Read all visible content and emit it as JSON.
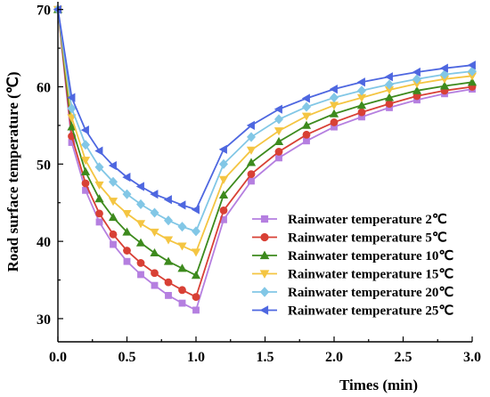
{
  "chart_data": {
    "type": "line",
    "xlabel": "Times (min)",
    "ylabel": "Road surface temperature (℃)",
    "xlim": [
      0,
      3.0
    ],
    "ylim": [
      27,
      71
    ],
    "x_ticks": [
      "0.0",
      "0.5",
      "1.0",
      "1.5",
      "2.0",
      "2.5",
      "3.0"
    ],
    "x_tick_values": [
      0,
      0.5,
      1.0,
      1.5,
      2.0,
      2.5,
      3.0
    ],
    "y_ticks": [
      "30",
      "40",
      "50",
      "60",
      "70"
    ],
    "y_tick_values": [
      30,
      40,
      50,
      60,
      70
    ],
    "grid": false,
    "legend_position": "bottom-right",
    "x": [
      0,
      0.1,
      0.2,
      0.3,
      0.4,
      0.5,
      0.6,
      0.7,
      0.8,
      0.9,
      1.0,
      1.2,
      1.4,
      1.6,
      1.8,
      2.0,
      2.2,
      2.4,
      2.6,
      2.8,
      3.0
    ],
    "series": [
      {
        "name": "Rainwater temperature 2℃",
        "color": "#b57fe0",
        "marker": "square",
        "values": [
          70,
          52.8,
          46.6,
          42.5,
          39.6,
          37.4,
          35.7,
          34.3,
          33.0,
          32.0,
          31.1,
          42.8,
          47.8,
          50.8,
          53.0,
          54.8,
          56.1,
          57.3,
          58.3,
          59.1,
          59.7
        ]
      },
      {
        "name": "Rainwater temperature 5℃",
        "color": "#d84035",
        "marker": "circle",
        "values": [
          70,
          53.6,
          47.5,
          43.6,
          40.9,
          38.8,
          37.2,
          35.9,
          34.7,
          33.7,
          32.8,
          44.0,
          48.7,
          51.6,
          53.8,
          55.4,
          56.7,
          57.8,
          58.8,
          59.5,
          60.0
        ]
      },
      {
        "name": "Rainwater temperature 10℃",
        "color": "#3d8a1d",
        "marker": "triangle-up",
        "values": [
          70,
          54.8,
          49.0,
          45.5,
          43.1,
          41.2,
          39.8,
          38.5,
          37.4,
          36.5,
          35.6,
          46.0,
          50.2,
          52.9,
          55.0,
          56.5,
          57.6,
          58.6,
          59.5,
          60.1,
          60.6
        ]
      },
      {
        "name": "Rainwater temperature 15℃",
        "color": "#f4c542",
        "marker": "triangle-down",
        "values": [
          70,
          56.0,
          50.5,
          47.3,
          45.2,
          43.6,
          42.3,
          41.2,
          40.2,
          39.4,
          38.6,
          48.0,
          51.8,
          54.3,
          56.2,
          57.6,
          58.6,
          59.6,
          60.4,
          61.0,
          61.4
        ]
      },
      {
        "name": "Rainwater temperature 20℃",
        "color": "#82c7e6",
        "marker": "diamond",
        "values": [
          70,
          57.2,
          52.5,
          49.6,
          47.7,
          46.1,
          44.8,
          43.7,
          42.7,
          41.9,
          41.3,
          50.0,
          53.5,
          55.8,
          57.4,
          58.6,
          59.5,
          60.3,
          61.0,
          61.6,
          62.0
        ]
      },
      {
        "name": "Rainwater temperature 25℃",
        "color": "#4e67e0",
        "marker": "triangle-left",
        "values": [
          70,
          58.6,
          54.4,
          51.7,
          49.8,
          48.3,
          47.1,
          46.1,
          45.4,
          44.7,
          44.1,
          51.9,
          55.0,
          57.1,
          58.5,
          59.7,
          60.6,
          61.3,
          61.9,
          62.4,
          62.8
        ]
      }
    ]
  }
}
